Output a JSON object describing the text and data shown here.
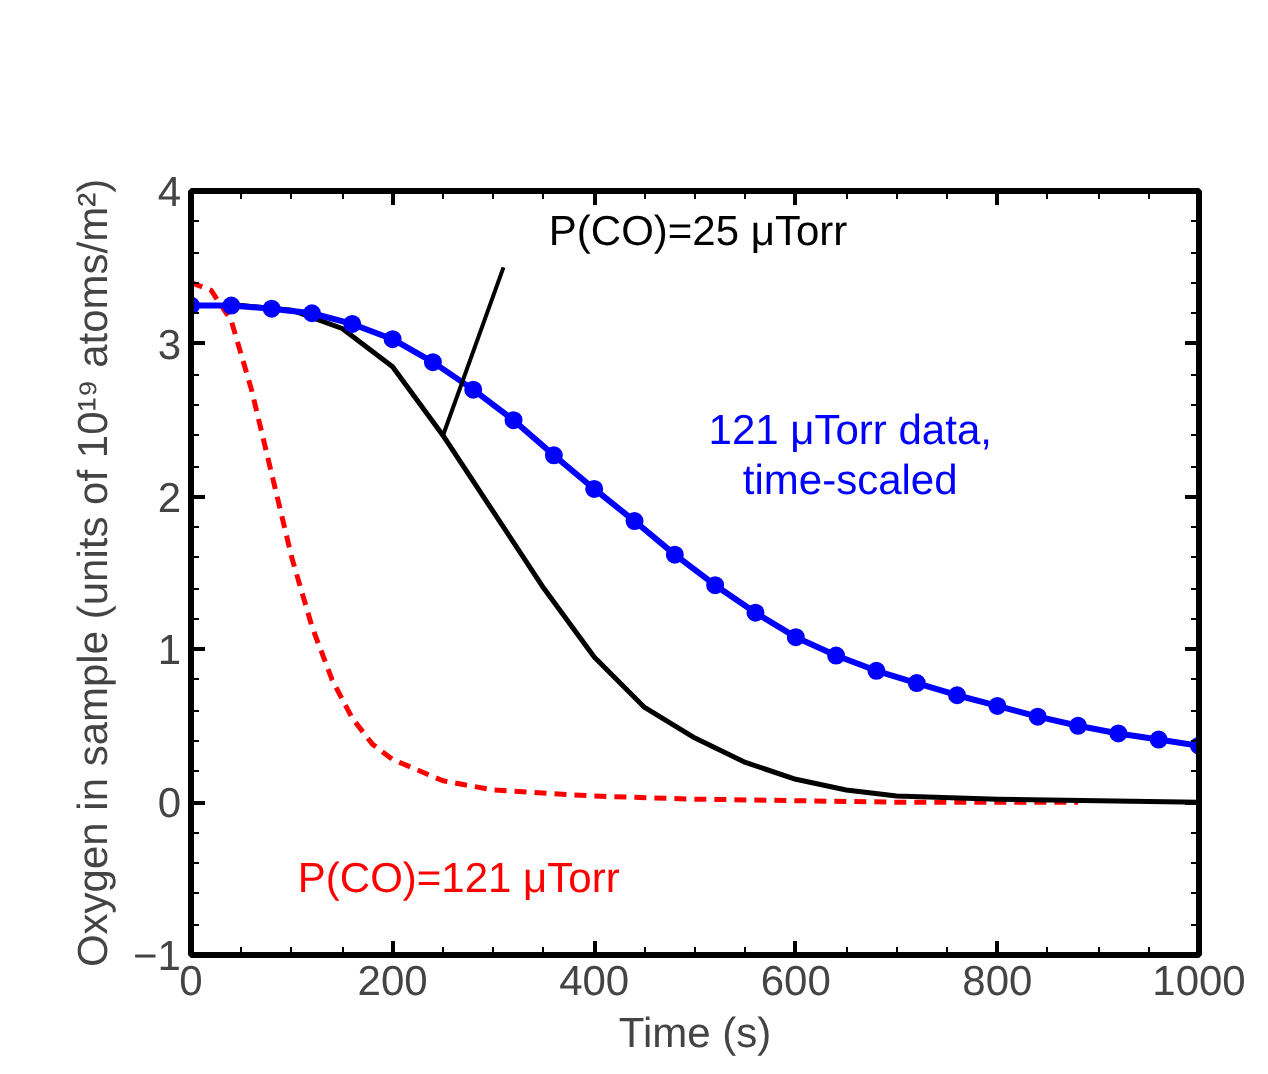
{
  "chart_data": {
    "type": "line",
    "xlabel": "Time (s)",
    "ylabel": "Oxygen in sample (units of 10¹⁹ atoms/m²)",
    "xlim": [
      0,
      1000
    ],
    "ylim": [
      -1,
      4
    ],
    "xticks": [
      0,
      200,
      400,
      600,
      800,
      1000
    ],
    "yticks": [
      -1,
      0,
      1,
      2,
      3,
      4
    ],
    "grid": false,
    "series": [
      {
        "name": "121 μTorr data,\ntime-scaled",
        "color": "#0000ff",
        "marker": "circle",
        "line_style": "solid",
        "x": [
          0,
          40,
          80,
          120,
          160,
          200,
          240,
          280,
          320,
          360,
          400,
          440,
          480,
          520,
          560,
          600,
          640,
          680,
          720,
          760,
          800,
          840,
          880,
          920,
          960,
          1000
        ],
        "values": [
          3.25,
          3.25,
          3.23,
          3.2,
          3.13,
          3.03,
          2.88,
          2.7,
          2.5,
          2.27,
          2.05,
          1.84,
          1.62,
          1.42,
          1.24,
          1.08,
          0.96,
          0.86,
          0.78,
          0.7,
          0.63,
          0.56,
          0.5,
          0.45,
          0.41,
          0.37
        ]
      },
      {
        "name": "P(CO)=25 μTorr",
        "color": "#000000",
        "marker": "none",
        "line_style": "solid",
        "x": [
          0,
          50,
          100,
          150,
          200,
          250,
          300,
          350,
          400,
          450,
          500,
          550,
          600,
          650,
          700,
          800,
          900,
          1000
        ],
        "values": [
          3.25,
          3.25,
          3.22,
          3.1,
          2.85,
          2.4,
          1.9,
          1.4,
          0.95,
          0.62,
          0.42,
          0.26,
          0.15,
          0.08,
          0.04,
          0.02,
          0.01,
          0.0
        ]
      },
      {
        "name": "P(CO)=121 μTorr",
        "color": "#ff0000",
        "marker": "none",
        "line_style": "dashed",
        "x": [
          0,
          20,
          40,
          60,
          80,
          100,
          120,
          140,
          160,
          180,
          200,
          250,
          300,
          400,
          500,
          600,
          700,
          880
        ],
        "values": [
          3.4,
          3.35,
          3.15,
          2.7,
          2.15,
          1.6,
          1.15,
          0.8,
          0.55,
          0.38,
          0.28,
          0.14,
          0.08,
          0.04,
          0.02,
          0.01,
          0.0,
          0.0
        ]
      }
    ]
  }
}
